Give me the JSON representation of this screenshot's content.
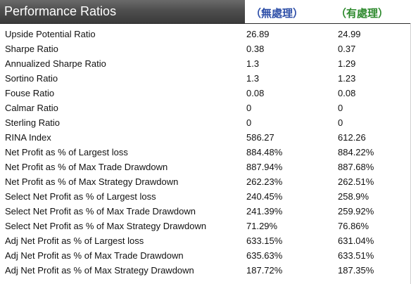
{
  "header": {
    "title": "Performance Ratios",
    "col_a": "（無處理）",
    "col_b": "（有處理）"
  },
  "colors": {
    "header_bg": "#4e4e4e",
    "col_a_text": "#2e4fa8",
    "col_b_text": "#2e8a2e"
  },
  "rows": [
    {
      "label": "Upside Potential Ratio",
      "a": "26.89",
      "b": "24.99"
    },
    {
      "label": "Sharpe Ratio",
      "a": "0.38",
      "b": "0.37"
    },
    {
      "label": "Annualized Sharpe Ratio",
      "a": "1.3",
      "b": "1.29"
    },
    {
      "label": "Sortino Ratio",
      "a": "1.3",
      "b": "1.23"
    },
    {
      "label": "Fouse Ratio",
      "a": "0.08",
      "b": "0.08"
    },
    {
      "label": "Calmar Ratio",
      "a": "0",
      "b": "0"
    },
    {
      "label": "Sterling Ratio",
      "a": "0",
      "b": "0"
    },
    {
      "label": "RINA Index",
      "a": "586.27",
      "b": "612.26"
    },
    {
      "label": "Net Profit as % of Largest loss",
      "a": "884.48%",
      "b": "884.22%"
    },
    {
      "label": "Net Profit as % of Max Trade Drawdown",
      "a": "887.94%",
      "b": "887.68%"
    },
    {
      "label": "Net Profit as % of Max Strategy Drawdown",
      "a": "262.23%",
      "b": "262.51%"
    },
    {
      "label": "Select Net Profit as % of Largest loss",
      "a": "240.45%",
      "b": "258.9%"
    },
    {
      "label": "Select Net Profit as % of Max Trade Drawdown",
      "a": "241.39%",
      "b": "259.92%"
    },
    {
      "label": "Select Net Profit as % of Max Strategy Drawdown",
      "a": "71.29%",
      "b": "76.86%"
    },
    {
      "label": "Adj Net Profit as % of Largest loss",
      "a": "633.15%",
      "b": "631.04%"
    },
    {
      "label": "Adj Net Profit as % of Max Trade Drawdown",
      "a": "635.63%",
      "b": "633.51%"
    },
    {
      "label": "Adj Net Profit as % of Max Strategy Drawdown",
      "a": "187.72%",
      "b": "187.35%"
    }
  ]
}
